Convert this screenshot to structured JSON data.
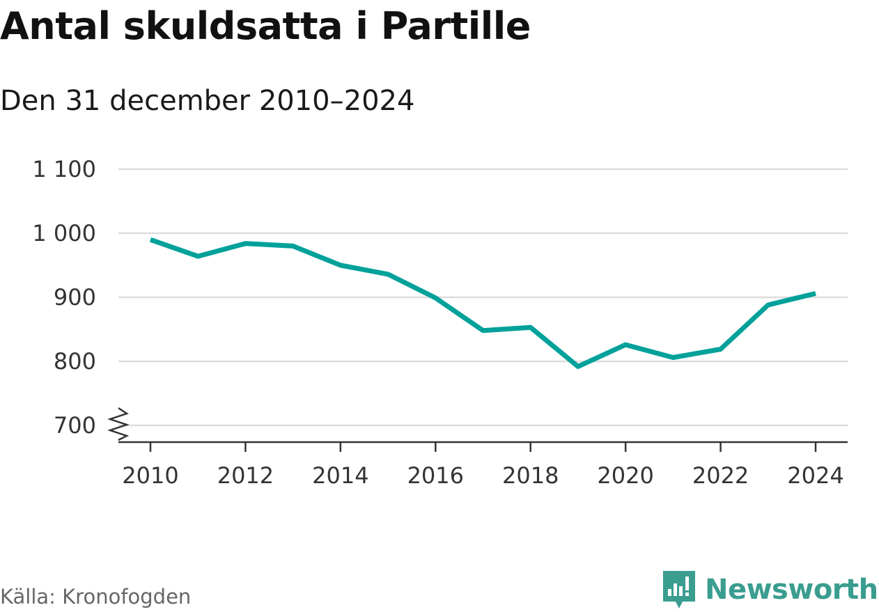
{
  "chart_data": {
    "type": "line",
    "title": "Antal skuldsatta i Partille",
    "subtitle": "Den 31 december 2010–2024",
    "x": [
      2010,
      2011,
      2012,
      2013,
      2014,
      2015,
      2016,
      2017,
      2018,
      2019,
      2020,
      2021,
      2022,
      2023,
      2024
    ],
    "series": [
      {
        "name": "Antal skuldsatta",
        "values": [
          990,
          964,
          984,
          980,
          950,
          936,
          899,
          848,
          853,
          792,
          826,
          806,
          819,
          888,
          906
        ],
        "color": "#00a19a"
      }
    ],
    "y_ticks": [
      {
        "value": 700,
        "label": "700"
      },
      {
        "value": 800,
        "label": "800"
      },
      {
        "value": 900,
        "label": "900"
      },
      {
        "value": 1000,
        "label": "1 000"
      },
      {
        "value": 1100,
        "label": "1 100"
      }
    ],
    "x_ticks": [
      {
        "value": 2010,
        "label": "2010"
      },
      {
        "value": 2012,
        "label": "2012"
      },
      {
        "value": 2014,
        "label": "2014"
      },
      {
        "value": 2016,
        "label": "2016"
      },
      {
        "value": 2018,
        "label": "2018"
      },
      {
        "value": 2020,
        "label": "2020"
      },
      {
        "value": 2022,
        "label": "2022"
      },
      {
        "value": 2024,
        "label": "2024"
      }
    ],
    "ylim": [
      700,
      1100
    ],
    "xlim": [
      2010,
      2024
    ],
    "xlabel": "",
    "ylabel": "",
    "grid": true,
    "axis_break": true
  },
  "footer": {
    "source": "Källa: Kronofogden",
    "brand": "Newsworthy",
    "brand_color": "#3a9d8f"
  }
}
